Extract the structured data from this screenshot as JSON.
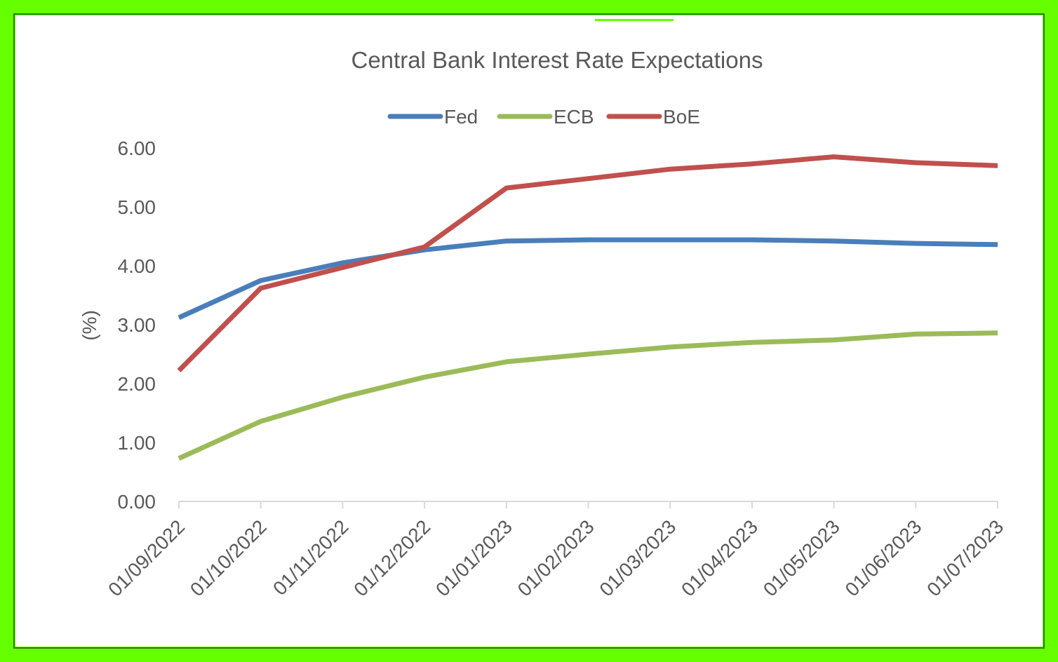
{
  "chart_data": {
    "type": "line",
    "title": "Central Bank Interest Rate Expectations",
    "ylabel": "(%)",
    "xlabel": "",
    "ylim": [
      0,
      6
    ],
    "yticks": [
      "0.00",
      "1.00",
      "2.00",
      "3.00",
      "4.00",
      "5.00",
      "6.00"
    ],
    "categories": [
      "01/09/2022",
      "01/10/2022",
      "01/11/2022",
      "01/12/2022",
      "01/01/2023",
      "01/02/2023",
      "01/03/2023",
      "01/04/2023",
      "01/05/2023",
      "01/06/2023",
      "01/07/2023"
    ],
    "legend_position": "top",
    "grid": false,
    "series": [
      {
        "name": "Fed",
        "color": "#4a7ebb",
        "values": [
          3.12,
          3.75,
          4.05,
          4.27,
          4.42,
          4.44,
          4.44,
          4.44,
          4.42,
          4.38,
          4.36
        ]
      },
      {
        "name": "ECB",
        "color": "#9bbb59",
        "values": [
          0.73,
          1.36,
          1.77,
          2.11,
          2.37,
          2.5,
          2.62,
          2.7,
          2.74,
          2.84,
          2.86
        ]
      },
      {
        "name": "BoE",
        "color": "#c0504d",
        "values": [
          2.22,
          3.62,
          3.97,
          4.32,
          5.32,
          5.48,
          5.64,
          5.73,
          5.85,
          5.75,
          5.7
        ]
      }
    ]
  }
}
